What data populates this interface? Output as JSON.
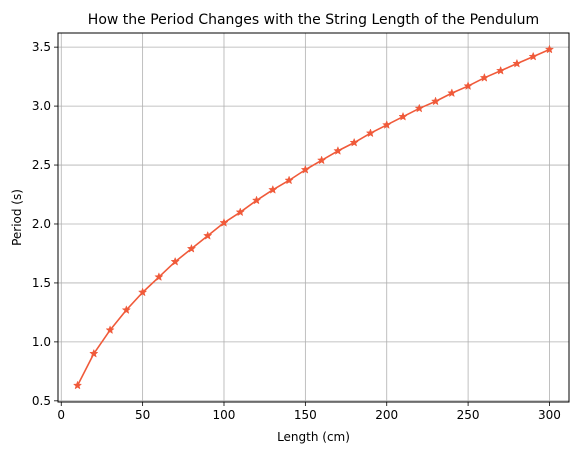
{
  "chart_data": {
    "type": "line",
    "title": "How the Period Changes with the String Length of the Pendulum",
    "xlabel": "Length (cm)",
    "ylabel": "Period (s)",
    "xlim": [
      -2,
      312
    ],
    "ylim": [
      0.49,
      3.62
    ],
    "xticks": [
      0,
      50,
      100,
      150,
      200,
      250,
      300
    ],
    "yticks": [
      0.5,
      1.0,
      1.5,
      2.0,
      2.5,
      3.0,
      3.5
    ],
    "grid": true,
    "color": "#f05a3a",
    "marker": "star",
    "series": [
      {
        "x": [
          10,
          20,
          30,
          40,
          50,
          60,
          70,
          80,
          90,
          100,
          110,
          120,
          130,
          140,
          150,
          160,
          170,
          180,
          190,
          200,
          210,
          220,
          230,
          240,
          250,
          260,
          270,
          280,
          290,
          300
        ],
        "values": [
          0.63,
          0.9,
          1.1,
          1.27,
          1.42,
          1.55,
          1.68,
          1.79,
          1.9,
          2.01,
          2.1,
          2.2,
          2.29,
          2.37,
          2.46,
          2.54,
          2.62,
          2.69,
          2.77,
          2.84,
          2.91,
          2.98,
          3.04,
          3.11,
          3.17,
          3.24,
          3.3,
          3.36,
          3.42,
          3.48
        ]
      }
    ]
  }
}
